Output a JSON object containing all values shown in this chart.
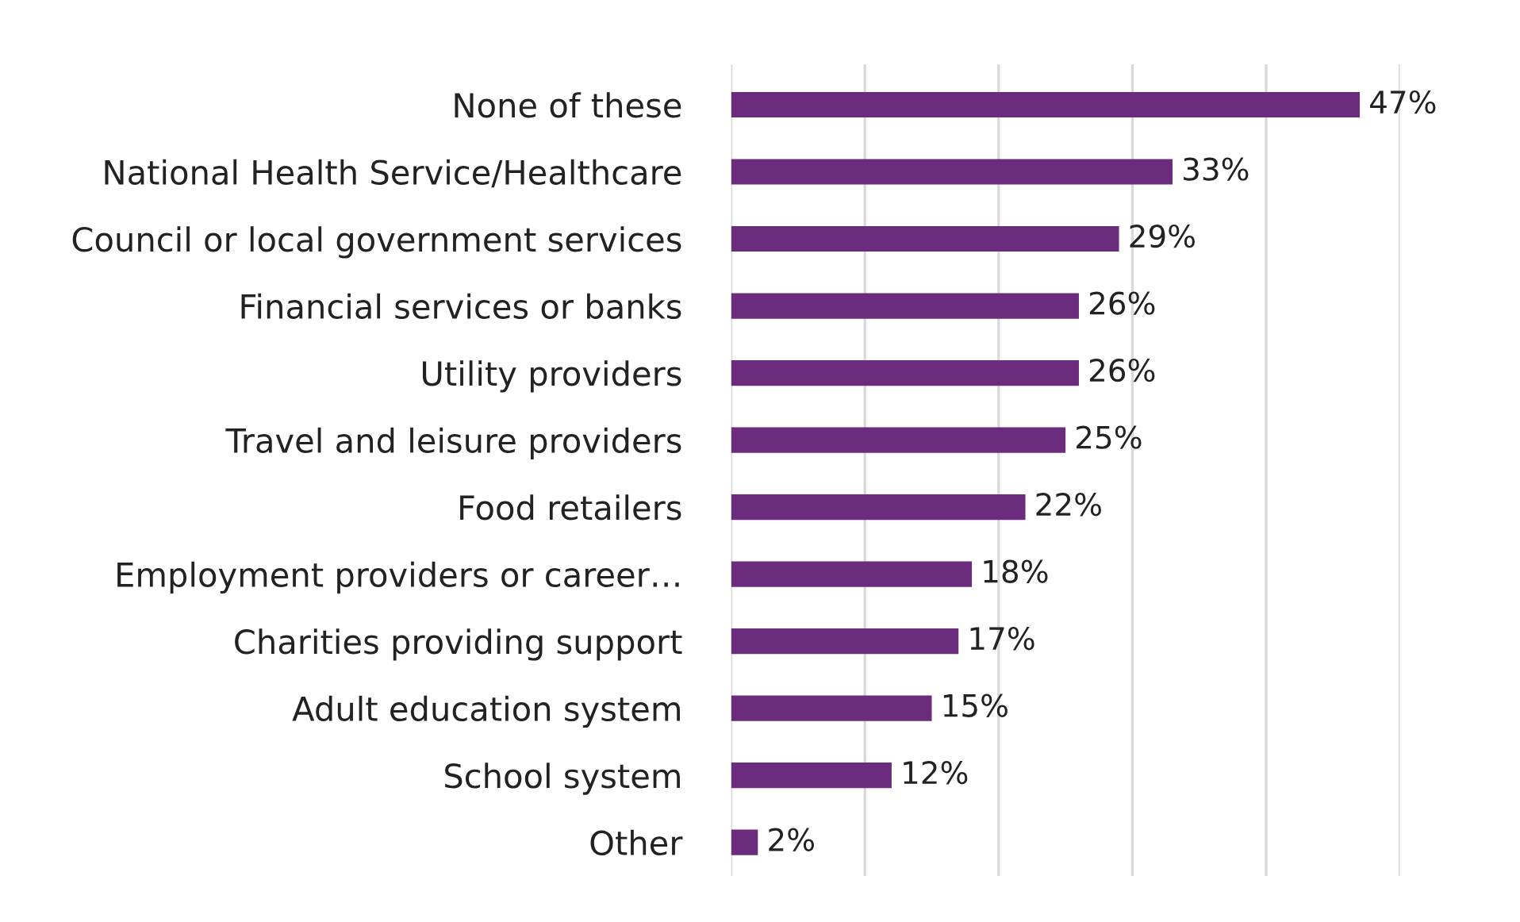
{
  "chart_data": {
    "type": "bar",
    "orientation": "horizontal",
    "categories": [
      "None of these",
      "National Health Service/Healthcare",
      "Council or local government services",
      "Financial services or banks",
      "Utility providers",
      "Travel and leisure providers",
      "Food retailers",
      "Employment providers or career…",
      "Charities providing support",
      "Adult education system",
      "School system",
      "Other"
    ],
    "values": [
      47,
      33,
      29,
      26,
      26,
      25,
      22,
      18,
      17,
      15,
      12,
      2
    ],
    "value_labels": [
      "47%",
      "33%",
      "29%",
      "26%",
      "26%",
      "25%",
      "22%",
      "18%",
      "17%",
      "15%",
      "12%",
      "2%"
    ],
    "color": "#6b2c7d",
    "xlim": [
      0,
      50
    ],
    "xticks": [
      {
        "value": 0,
        "label": null
      },
      {
        "value": 10,
        "label": null
      },
      {
        "value": 20,
        "label": null
      },
      {
        "value": 30,
        "label": null
      },
      {
        "value": 40,
        "label": null
      },
      {
        "value": 50,
        "label": null
      }
    ],
    "grid": "x",
    "tick_labels": "y",
    "legend": false
  }
}
